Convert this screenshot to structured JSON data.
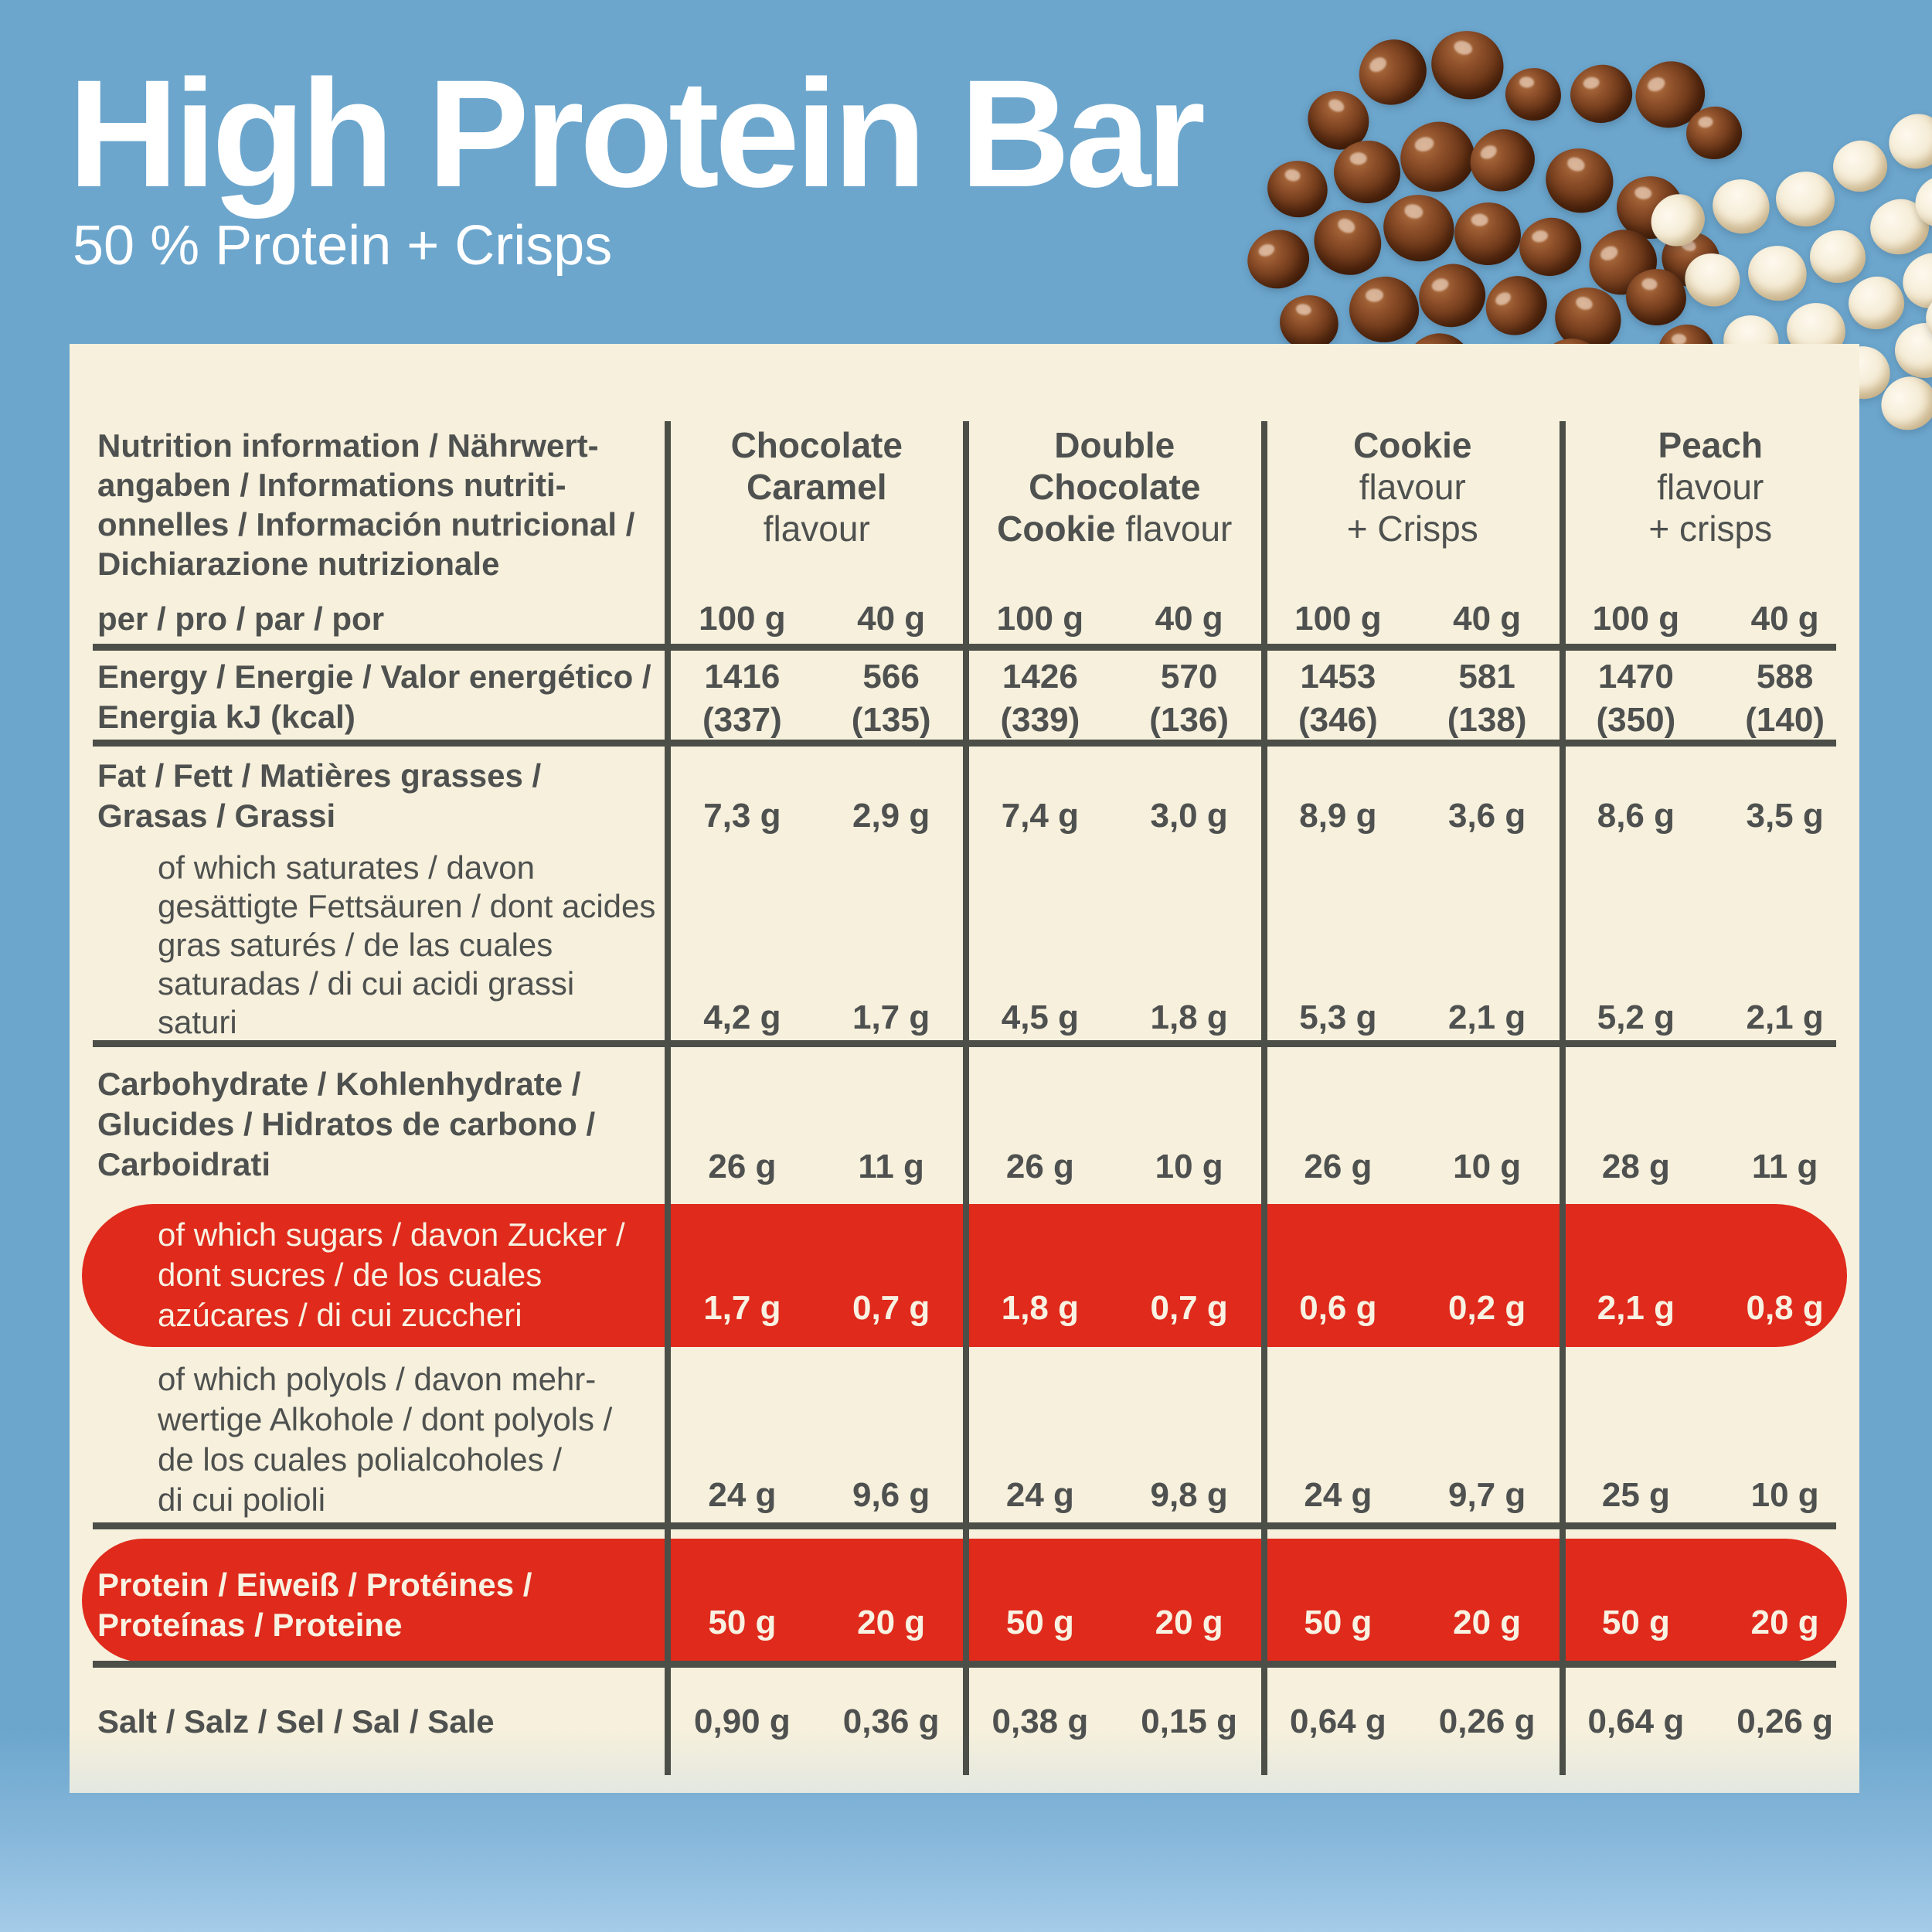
{
  "header": {
    "title": "High Protein Bar",
    "subtitle": "50 % Protein + Crisps"
  },
  "colors": {
    "background_blue": "#6CA6CD",
    "panel_cream": "#F6F0DC",
    "text_dark": "#4E514F",
    "accent_red": "#DF2A1C",
    "text_on_red": "#F8F2E2"
  },
  "decor": {
    "left_cluster": "chocolate-crisps",
    "right_cluster": "white-crisps"
  },
  "table": {
    "info_label_lines": [
      "Nutrition information / Nährwert-",
      "angaben / Informations nutriti-",
      "onnelles / Información nutricional /",
      "Dichiarazione nutrizionale"
    ],
    "per_label": "per / pro / par / por",
    "amount_headers": [
      "100 g",
      "40 g"
    ],
    "groups": [
      {
        "id": "chocolate-caramel",
        "name_lines": [
          [
            {
              "text": "Chocolate",
              "bold": true
            }
          ],
          [
            {
              "text": "Caramel",
              "bold": true
            }
          ],
          [
            {
              "text": "flavour",
              "bold": false
            }
          ]
        ]
      },
      {
        "id": "double-chocolate-cookie",
        "name_lines": [
          [
            {
              "text": "Double",
              "bold": true
            }
          ],
          [
            {
              "text": "Chocolate",
              "bold": true
            }
          ],
          [
            {
              "text": "Cookie",
              "bold": true
            },
            {
              "text": " flavour",
              "bold": false
            }
          ]
        ]
      },
      {
        "id": "cookie-crisps",
        "name_lines": [
          [
            {
              "text": "Cookie",
              "bold": true
            }
          ],
          [
            {
              "text": "flavour",
              "bold": false
            }
          ],
          [
            {
              "text": "+ Crisps",
              "bold": false
            }
          ]
        ]
      },
      {
        "id": "peach-crisps",
        "name_lines": [
          [
            {
              "text": "Peach",
              "bold": true
            }
          ],
          [
            {
              "text": "flavour",
              "bold": false
            }
          ],
          [
            {
              "text": "+ crisps",
              "bold": false
            }
          ]
        ]
      }
    ],
    "rows": [
      {
        "id": "energy",
        "style": "main",
        "label_lines": [
          "Energy / Energie / Valor energético /",
          "Energia kJ (kcal)"
        ],
        "values": [
          [
            "1416",
            "(337)"
          ],
          [
            "566",
            "(135)"
          ],
          [
            "1426",
            "(339)"
          ],
          [
            "570",
            "(136)"
          ],
          [
            "1453",
            "(346)"
          ],
          [
            "581",
            "(138)"
          ],
          [
            "1470",
            "(350)"
          ],
          [
            "588",
            "(140)"
          ]
        ]
      },
      {
        "id": "fat",
        "style": "main",
        "label_lines": [
          "Fat / Fett / Matières grasses /",
          "Grasas / Grassi"
        ],
        "values": [
          "7,3 g",
          "2,9 g",
          "7,4 g",
          "3,0 g",
          "8,9 g",
          "3,6 g",
          "8,6 g",
          "3,5 g"
        ]
      },
      {
        "id": "saturates",
        "style": "sub",
        "label_lines": [
          "of which saturates / davon",
          "gesättigte Fettsäuren / dont acides",
          "gras saturés / de las cuales",
          "saturadas / di cui acidi grassi",
          "saturi"
        ],
        "values": [
          "4,2 g",
          "1,7 g",
          "4,5 g",
          "1,8 g",
          "5,3 g",
          "2,1 g",
          "5,2 g",
          "2,1 g"
        ]
      },
      {
        "id": "carbohydrate",
        "style": "main",
        "label_lines": [
          "Carbohydrate / Kohlenhydrate /",
          "Glucides / Hidratos de carbono /",
          "Carboidrati"
        ],
        "values": [
          "26 g",
          "11 g",
          "26 g",
          "10 g",
          "26 g",
          "10 g",
          "28 g",
          "11 g"
        ]
      },
      {
        "id": "sugars",
        "style": "sub-red",
        "label_lines": [
          "of which sugars / davon Zucker /",
          "dont sucres / de los cuales",
          "azúcares / di cui zuccheri"
        ],
        "values": [
          "1,7 g",
          "0,7 g",
          "1,8 g",
          "0,7 g",
          "0,6 g",
          "0,2 g",
          "2,1 g",
          "0,8 g"
        ]
      },
      {
        "id": "polyols",
        "style": "sub",
        "label_lines": [
          "of which polyols / davon mehr-",
          "wertige Alkohole / dont polyols /",
          "de los cuales polialcoholes /",
          "di cui polioli"
        ],
        "values": [
          "24 g",
          "9,6 g",
          "24 g",
          "9,8 g",
          "24 g",
          "9,7 g",
          "25 g",
          "10 g"
        ]
      },
      {
        "id": "protein",
        "style": "main-red",
        "label_lines": [
          "Protein / Eiweiß / Protéines /",
          "Proteínas / Proteine"
        ],
        "values": [
          "50 g",
          "20 g",
          "50 g",
          "20 g",
          "50 g",
          "20 g",
          "50 g",
          "20 g"
        ]
      },
      {
        "id": "salt",
        "style": "main",
        "label_lines": [
          "Salt / Salz / Sel / Sal / Sale"
        ],
        "values": [
          "0,90 g",
          "0,36 g",
          "0,38 g",
          "0,15 g",
          "0,64 g",
          "0,26 g",
          "0,64 g",
          "0,26 g"
        ]
      }
    ]
  }
}
